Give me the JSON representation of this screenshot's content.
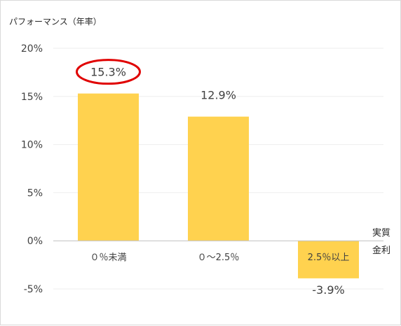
{
  "chart_data": {
    "type": "bar",
    "ylabel": "パフォーマンス（年率）",
    "xlabel_lines": [
      "実質",
      "金利"
    ],
    "categories": [
      "０％未満",
      "０～2.5％",
      "2.5％以上"
    ],
    "values": [
      15.3,
      12.9,
      -3.9
    ],
    "data_labels": [
      "15.3%",
      "12.9%",
      "-3.9%"
    ],
    "ylim": [
      -5,
      20
    ],
    "yticks": [
      20,
      15,
      10,
      5,
      0,
      -5
    ],
    "ytick_labels": [
      "20%",
      "15%",
      "10%",
      "5%",
      "0%",
      "-5%"
    ],
    "grid": true,
    "highlight_index": 0,
    "colors": {
      "bar": "#FFD24F",
      "highlight_ring": "#E00000",
      "grid": "#eeeeee",
      "axis": "#bfbfbf"
    }
  }
}
